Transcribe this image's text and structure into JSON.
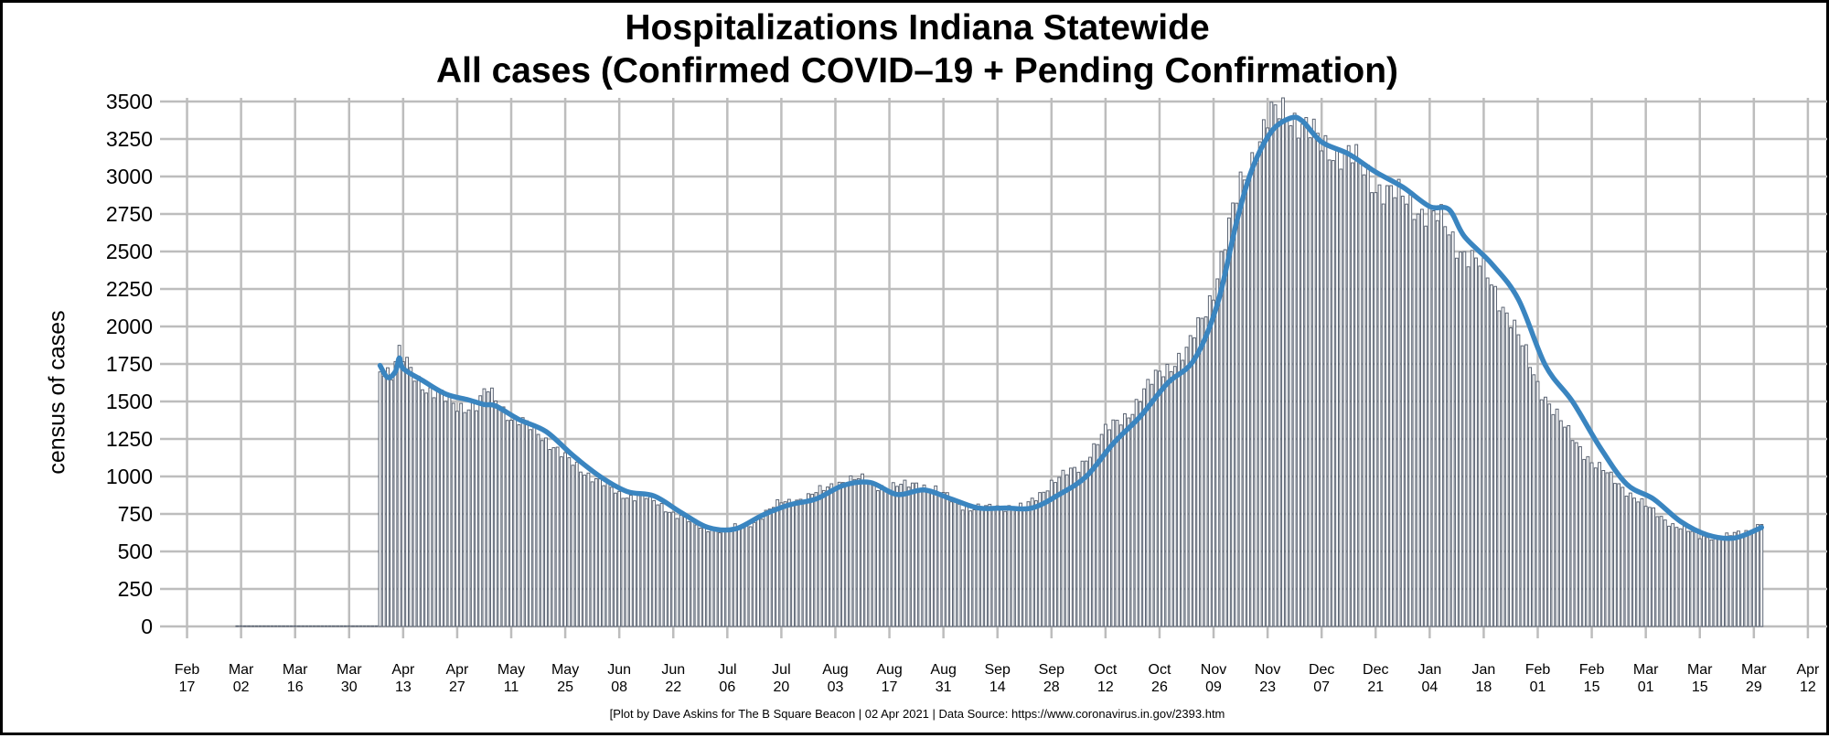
{
  "chart_data": {
    "type": "bar",
    "title": [
      "Hospitalizations Indiana Statewide",
      "All cases (Confirmed COVID–19 + Pending Confirmation)"
    ],
    "ylabel": "census of cases",
    "xlabel": "",
    "ylim": [
      0,
      3500
    ],
    "yticks": [
      0,
      250,
      500,
      750,
      1000,
      1250,
      1500,
      1750,
      2000,
      2250,
      2500,
      2750,
      3000,
      3250,
      3500
    ],
    "xrange": [
      "2020-02-10",
      "2021-04-17"
    ],
    "xticks": [
      {
        "date": "2020-02-17",
        "month": "Feb",
        "day": "17"
      },
      {
        "date": "2020-03-02",
        "month": "Mar",
        "day": "02"
      },
      {
        "date": "2020-03-16",
        "month": "Mar",
        "day": "16"
      },
      {
        "date": "2020-03-30",
        "month": "Mar",
        "day": "30"
      },
      {
        "date": "2020-04-13",
        "month": "Apr",
        "day": "13"
      },
      {
        "date": "2020-04-27",
        "month": "Apr",
        "day": "27"
      },
      {
        "date": "2020-05-11",
        "month": "May",
        "day": "11"
      },
      {
        "date": "2020-05-25",
        "month": "May",
        "day": "25"
      },
      {
        "date": "2020-06-08",
        "month": "Jun",
        "day": "08"
      },
      {
        "date": "2020-06-22",
        "month": "Jun",
        "day": "22"
      },
      {
        "date": "2020-07-06",
        "month": "Jul",
        "day": "06"
      },
      {
        "date": "2020-07-20",
        "month": "Jul",
        "day": "20"
      },
      {
        "date": "2020-08-03",
        "month": "Aug",
        "day": "03"
      },
      {
        "date": "2020-08-17",
        "month": "Aug",
        "day": "17"
      },
      {
        "date": "2020-08-31",
        "month": "Aug",
        "day": "31"
      },
      {
        "date": "2020-09-14",
        "month": "Sep",
        "day": "14"
      },
      {
        "date": "2020-09-28",
        "month": "Sep",
        "day": "28"
      },
      {
        "date": "2020-10-12",
        "month": "Oct",
        "day": "12"
      },
      {
        "date": "2020-10-26",
        "month": "Oct",
        "day": "26"
      },
      {
        "date": "2020-11-09",
        "month": "Nov",
        "day": "09"
      },
      {
        "date": "2020-11-23",
        "month": "Nov",
        "day": "23"
      },
      {
        "date": "2020-12-07",
        "month": "Dec",
        "day": "07"
      },
      {
        "date": "2020-12-21",
        "month": "Dec",
        "day": "21"
      },
      {
        "date": "2021-01-04",
        "month": "Jan",
        "day": "04"
      },
      {
        "date": "2021-01-18",
        "month": "Jan",
        "day": "18"
      },
      {
        "date": "2021-02-01",
        "month": "Feb",
        "day": "01"
      },
      {
        "date": "2021-02-15",
        "month": "Feb",
        "day": "15"
      },
      {
        "date": "2021-03-01",
        "month": "Mar",
        "day": "01"
      },
      {
        "date": "2021-03-15",
        "month": "Mar",
        "day": "15"
      },
      {
        "date": "2021-03-29",
        "month": "Mar",
        "day": "29"
      },
      {
        "date": "2021-04-12",
        "month": "Apr",
        "day": "12"
      }
    ],
    "grid": true,
    "colors": {
      "bar_fill": "#ffffff",
      "bar_stroke": "#5a6372",
      "trend": "#3a85c0",
      "grid": "#bdbdbd",
      "axis_text": "#000000"
    },
    "series": [
      {
        "kind": "bars",
        "start_date": "2020-03-01",
        "end_date": "2021-03-31",
        "anchors": [
          [
            "2020-03-01",
            0
          ],
          [
            "2020-04-06",
            0
          ],
          [
            "2020-04-07",
            1740
          ],
          [
            "2020-04-10",
            1670
          ],
          [
            "2020-04-12",
            1810
          ],
          [
            "2020-04-15",
            1720
          ],
          [
            "2020-04-20",
            1560
          ],
          [
            "2020-04-27",
            1480
          ],
          [
            "2020-05-02",
            1460
          ],
          [
            "2020-05-05",
            1580
          ],
          [
            "2020-05-11",
            1390
          ],
          [
            "2020-05-18",
            1300
          ],
          [
            "2020-05-25",
            1120
          ],
          [
            "2020-06-01",
            1000
          ],
          [
            "2020-06-08",
            880
          ],
          [
            "2020-06-15",
            860
          ],
          [
            "2020-06-22",
            760
          ],
          [
            "2020-06-29",
            660
          ],
          [
            "2020-07-06",
            640
          ],
          [
            "2020-07-13",
            700
          ],
          [
            "2020-07-20",
            830
          ],
          [
            "2020-07-27",
            860
          ],
          [
            "2020-08-03",
            960
          ],
          [
            "2020-08-10",
            980
          ],
          [
            "2020-08-17",
            920
          ],
          [
            "2020-08-24",
            960
          ],
          [
            "2020-08-31",
            880
          ],
          [
            "2020-09-07",
            780
          ],
          [
            "2020-09-14",
            800
          ],
          [
            "2020-09-21",
            790
          ],
          [
            "2020-09-28",
            960
          ],
          [
            "2020-10-05",
            1060
          ],
          [
            "2020-10-12",
            1300
          ],
          [
            "2020-10-19",
            1450
          ],
          [
            "2020-10-26",
            1700
          ],
          [
            "2020-11-02",
            1820
          ],
          [
            "2020-11-09",
            2250
          ],
          [
            "2020-11-13",
            2650
          ],
          [
            "2020-11-16",
            2950
          ],
          [
            "2020-11-20",
            3200
          ],
          [
            "2020-11-23",
            3370
          ],
          [
            "2020-11-28",
            3450
          ],
          [
            "2020-12-03",
            3330
          ],
          [
            "2020-12-07",
            3200
          ],
          [
            "2020-12-14",
            3150
          ],
          [
            "2020-12-21",
            2950
          ],
          [
            "2020-12-28",
            2850
          ],
          [
            "2021-01-04",
            2750
          ],
          [
            "2021-01-07",
            2700
          ],
          [
            "2021-01-11",
            2550
          ],
          [
            "2021-01-18",
            2380
          ],
          [
            "2021-01-25",
            2050
          ],
          [
            "2021-02-01",
            1620
          ],
          [
            "2021-02-08",
            1320
          ],
          [
            "2021-02-15",
            1100
          ],
          [
            "2021-02-22",
            950
          ],
          [
            "2021-03-01",
            800
          ],
          [
            "2021-03-08",
            680
          ],
          [
            "2021-03-15",
            600
          ],
          [
            "2021-03-22",
            600
          ],
          [
            "2021-03-29",
            650
          ],
          [
            "2021-03-31",
            690
          ]
        ]
      },
      {
        "kind": "line",
        "points": [
          [
            "2020-04-07",
            1740
          ],
          [
            "2020-04-09",
            1660
          ],
          [
            "2020-04-11",
            1700
          ],
          [
            "2020-04-12",
            1790
          ],
          [
            "2020-04-13",
            1720
          ],
          [
            "2020-04-18",
            1640
          ],
          [
            "2020-04-24",
            1550
          ],
          [
            "2020-04-30",
            1510
          ],
          [
            "2020-05-04",
            1480
          ],
          [
            "2020-05-07",
            1470
          ],
          [
            "2020-05-13",
            1380
          ],
          [
            "2020-05-20",
            1300
          ],
          [
            "2020-05-27",
            1140
          ],
          [
            "2020-06-03",
            1000
          ],
          [
            "2020-06-10",
            900
          ],
          [
            "2020-06-17",
            870
          ],
          [
            "2020-06-24",
            760
          ],
          [
            "2020-07-01",
            660
          ],
          [
            "2020-07-08",
            650
          ],
          [
            "2020-07-15",
            740
          ],
          [
            "2020-07-22",
            810
          ],
          [
            "2020-07-29",
            850
          ],
          [
            "2020-08-05",
            940
          ],
          [
            "2020-08-12",
            960
          ],
          [
            "2020-08-19",
            880
          ],
          [
            "2020-08-26",
            910
          ],
          [
            "2020-09-02",
            850
          ],
          [
            "2020-09-09",
            790
          ],
          [
            "2020-09-16",
            790
          ],
          [
            "2020-09-23",
            790
          ],
          [
            "2020-09-30",
            880
          ],
          [
            "2020-10-07",
            1000
          ],
          [
            "2020-10-14",
            1220
          ],
          [
            "2020-10-21",
            1400
          ],
          [
            "2020-10-28",
            1620
          ],
          [
            "2020-11-04",
            1780
          ],
          [
            "2020-11-10",
            2150
          ],
          [
            "2020-11-15",
            2700
          ],
          [
            "2020-11-19",
            3050
          ],
          [
            "2020-11-24",
            3300
          ],
          [
            "2020-11-29",
            3390
          ],
          [
            "2020-12-02",
            3370
          ],
          [
            "2020-12-07",
            3230
          ],
          [
            "2020-12-14",
            3150
          ],
          [
            "2020-12-21",
            3030
          ],
          [
            "2020-12-28",
            2930
          ],
          [
            "2021-01-04",
            2800
          ],
          [
            "2021-01-09",
            2780
          ],
          [
            "2021-01-13",
            2600
          ],
          [
            "2021-01-20",
            2420
          ],
          [
            "2021-01-27",
            2180
          ],
          [
            "2021-02-03",
            1740
          ],
          [
            "2021-02-10",
            1500
          ],
          [
            "2021-02-17",
            1200
          ],
          [
            "2021-02-24",
            950
          ],
          [
            "2021-03-03",
            850
          ],
          [
            "2021-03-10",
            700
          ],
          [
            "2021-03-17",
            610
          ],
          [
            "2021-03-24",
            590
          ],
          [
            "2021-03-31",
            660
          ]
        ]
      }
    ]
  },
  "credit": "[Plot by Dave Askins for The B Square Beacon | 02 Apr 2021 | Data Source: https://www.coronavirus.in.gov/2393.htm"
}
